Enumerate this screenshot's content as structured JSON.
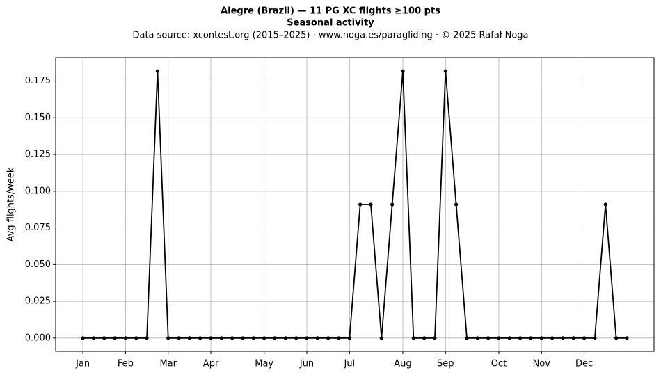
{
  "chart_data": {
    "type": "line",
    "title": "Alegre (Brazil)  —  11 PG XC flights ≥100 pts",
    "subtitle": "Seasonal activity",
    "source": "Data source: xcontest.org (2015–2025)  ·  www.noga.es/paragliding  ·  © 2025 Rafał Noga",
    "y_label": "Avg flights/week",
    "x": [
      1,
      2,
      3,
      4,
      5,
      6,
      7,
      8,
      9,
      10,
      11,
      12,
      13,
      14,
      15,
      16,
      17,
      18,
      19,
      20,
      21,
      22,
      23,
      24,
      25,
      26,
      27,
      28,
      29,
      30,
      31,
      32,
      33,
      34,
      35,
      36,
      37,
      38,
      39,
      40,
      41,
      42,
      43,
      44,
      45,
      46,
      47,
      48,
      49,
      50,
      51,
      52
    ],
    "series": [
      {
        "color": "#000000",
        "values": [
          0,
          0,
          0,
          0,
          0,
          0,
          0,
          0.1818,
          0,
          0,
          0,
          0,
          0,
          0,
          0,
          0,
          0,
          0,
          0,
          0,
          0,
          0,
          0,
          0,
          0,
          0,
          0.0909,
          0.0909,
          0,
          0.0909,
          0.1818,
          0,
          0,
          0,
          0.1818,
          0.0909,
          0,
          0,
          0,
          0,
          0,
          0,
          0,
          0,
          0,
          0,
          0,
          0,
          0,
          0.0909,
          0,
          0
        ]
      }
    ],
    "xlim": [
      -1.55,
      54.55
    ],
    "xticks": [
      {
        "value": 1,
        "label": "Jan"
      },
      {
        "value": 5,
        "label": "Feb"
      },
      {
        "value": 9,
        "label": "Mar"
      },
      {
        "value": 13,
        "label": "Apr"
      },
      {
        "value": 18,
        "label": "May"
      },
      {
        "value": 22,
        "label": "Jun"
      },
      {
        "value": 26,
        "label": "Jul"
      },
      {
        "value": 31,
        "label": "Aug"
      },
      {
        "value": 35,
        "label": "Sep"
      },
      {
        "value": 40,
        "label": "Oct"
      },
      {
        "value": 44,
        "label": "Nov"
      },
      {
        "value": 48,
        "label": "Dec"
      }
    ],
    "ylim": [
      -0.0091,
      0.1909
    ],
    "yticks": [
      {
        "value": 0,
        "label": "0.000"
      },
      {
        "value": 0.025,
        "label": "0.025"
      },
      {
        "value": 0.05,
        "label": "0.050"
      },
      {
        "value": 0.075,
        "label": "0.075"
      },
      {
        "value": 0.1,
        "label": "0.100"
      },
      {
        "value": 0.125,
        "label": "0.125"
      },
      {
        "value": 0.15,
        "label": "0.150"
      },
      {
        "value": 0.175,
        "label": "0.175"
      }
    ],
    "grid": true
  }
}
